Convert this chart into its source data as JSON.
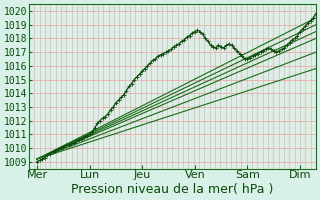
{
  "title": "",
  "xlabel": "Pression niveau de la mer( hPa )",
  "ylabel": "",
  "ylim": [
    1008.5,
    1020.5
  ],
  "yticks": [
    1009,
    1010,
    1011,
    1012,
    1013,
    1014,
    1015,
    1016,
    1017,
    1018,
    1019,
    1020
  ],
  "xtick_labels": [
    "Mer",
    "Lun",
    "Jeu",
    "Ven",
    "Sam",
    "Dim"
  ],
  "xtick_positions": [
    0,
    1,
    2,
    3,
    4,
    5
  ],
  "xlim": [
    -0.15,
    5.3
  ],
  "background_color": "#d8f0e8",
  "grid_color": "#f0a0a0",
  "line_color": "#1a6b1a",
  "line_color_dark": "#0a4a0a",
  "xlabel_fontsize": 9,
  "ytick_fontsize": 7,
  "xtick_fontsize": 8,
  "fan_lines": [
    {
      "x": [
        0,
        5.3
      ],
      "y": [
        1009.2,
        1019.5
      ]
    },
    {
      "x": [
        0,
        5.3
      ],
      "y": [
        1009.2,
        1019.0
      ]
    },
    {
      "x": [
        0,
        5.3
      ],
      "y": [
        1009.2,
        1018.5
      ]
    },
    {
      "x": [
        0,
        5.3
      ],
      "y": [
        1009.2,
        1018.0
      ]
    },
    {
      "x": [
        0,
        5.3
      ],
      "y": [
        1009.2,
        1017.0
      ]
    },
    {
      "x": [
        0,
        5.3
      ],
      "y": [
        1009.2,
        1015.8
      ]
    }
  ],
  "noisy_line_x": [
    0.0,
    0.05,
    0.1,
    0.15,
    0.2,
    0.25,
    0.3,
    0.35,
    0.4,
    0.45,
    0.5,
    0.55,
    0.6,
    0.65,
    0.7,
    0.75,
    0.8,
    0.85,
    0.9,
    0.95,
    1.0,
    1.05,
    1.1,
    1.15,
    1.2,
    1.25,
    1.3,
    1.35,
    1.4,
    1.45,
    1.5,
    1.55,
    1.6,
    1.65,
    1.7,
    1.75,
    1.8,
    1.85,
    1.9,
    1.95,
    2.0,
    2.05,
    2.1,
    2.15,
    2.2,
    2.25,
    2.3,
    2.35,
    2.4,
    2.45,
    2.5,
    2.55,
    2.6,
    2.65,
    2.7,
    2.75,
    2.8,
    2.85,
    2.9,
    2.95,
    3.0,
    3.05,
    3.1,
    3.15,
    3.2,
    3.25,
    3.3,
    3.35,
    3.4,
    3.45,
    3.5,
    3.55,
    3.6,
    3.65,
    3.7,
    3.75,
    3.8,
    3.85,
    3.9,
    3.95,
    4.0,
    4.05,
    4.1,
    4.15,
    4.2,
    4.25,
    4.3,
    4.35,
    4.4,
    4.45,
    4.5,
    4.55,
    4.6,
    4.65,
    4.7,
    4.75,
    4.8,
    4.85,
    4.9,
    4.95,
    5.0,
    5.05,
    5.1,
    5.15,
    5.2,
    5.25,
    5.3
  ],
  "noisy_line_y": [
    1009.0,
    1009.1,
    1009.2,
    1009.3,
    1009.5,
    1009.6,
    1009.7,
    1009.8,
    1009.9,
    1010.0,
    1010.1,
    1010.2,
    1010.2,
    1010.3,
    1010.4,
    1010.5,
    1010.6,
    1010.7,
    1010.8,
    1010.9,
    1011.0,
    1011.2,
    1011.5,
    1011.8,
    1012.0,
    1012.2,
    1012.3,
    1012.5,
    1012.8,
    1013.0,
    1013.3,
    1013.5,
    1013.7,
    1013.9,
    1014.2,
    1014.5,
    1014.7,
    1015.0,
    1015.2,
    1015.4,
    1015.6,
    1015.8,
    1016.0,
    1016.2,
    1016.4,
    1016.5,
    1016.7,
    1016.8,
    1016.9,
    1017.0,
    1017.1,
    1017.2,
    1017.4,
    1017.5,
    1017.6,
    1017.8,
    1017.9,
    1018.1,
    1018.2,
    1018.4,
    1018.5,
    1018.6,
    1018.5,
    1018.3,
    1018.0,
    1017.8,
    1017.5,
    1017.4,
    1017.3,
    1017.5,
    1017.4,
    1017.3,
    1017.5,
    1017.6,
    1017.5,
    1017.3,
    1017.1,
    1016.9,
    1016.7,
    1016.5,
    1016.5,
    1016.6,
    1016.7,
    1016.8,
    1016.9,
    1017.0,
    1017.1,
    1017.2,
    1017.3,
    1017.2,
    1017.1,
    1017.0,
    1017.1,
    1017.2,
    1017.3,
    1017.5,
    1017.7,
    1017.9,
    1018.0,
    1018.2,
    1018.5,
    1018.7,
    1018.9,
    1019.1,
    1019.3,
    1019.5,
    1019.8
  ]
}
